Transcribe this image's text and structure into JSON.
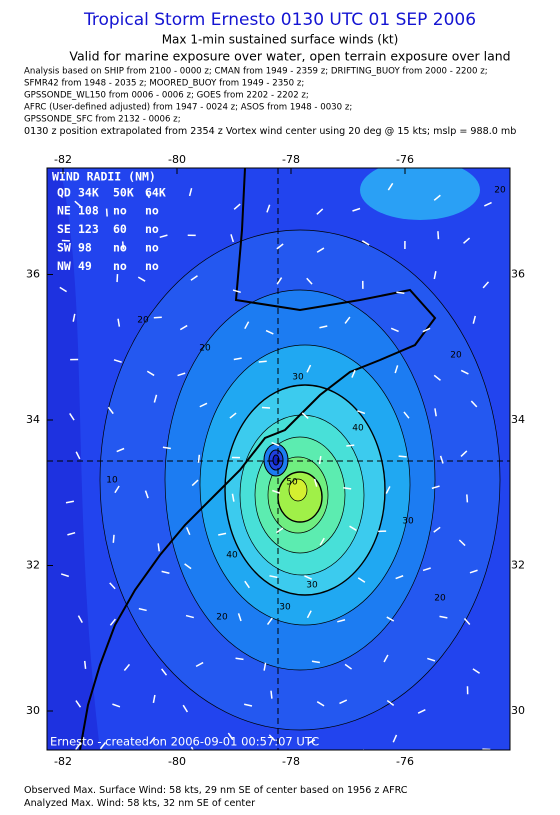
{
  "header": {
    "title": "Tropical Storm Ernesto 0130 UTC 01 SEP 2006",
    "subtitle": "Max 1-min sustained surface winds (kt)",
    "validity": "Valid for marine exposure over water, open terrain exposure over land",
    "analysis_lines": [
      "Analysis based on   SHIP from 2100 - 0000 z;  CMAN from 1949 - 2359 z;  DRIFTING_BUOY from 2000 - 2200 z;",
      "SFMR42 from 1948 - 2035 z;  MOORED_BUOY from 1949 - 2350 z;",
      "GPSSONDE_WL150 from 0006 - 0006 z;  GOES from 2202 - 2202 z;",
      "AFRC (User-defined adjusted) from 1947 - 0024 z;  ASOS from 1948 - 0030 z;",
      "GPSSONDE_SFC from 2132 - 0006 z;"
    ],
    "position_note": "0130 z position extrapolated from 2354 z Vortex wind center using 20 deg @ 15 kts; mslp = 988.0 mb"
  },
  "map": {
    "lon_ticks": [
      -82,
      -80,
      -78,
      -76
    ],
    "lat_ticks": [
      36,
      34,
      32,
      30
    ],
    "contour_labels": [
      "20",
      "20",
      "20",
      "20",
      "20",
      "30",
      "30",
      "30",
      "40",
      "40",
      "50",
      "10",
      "20",
      "30"
    ],
    "wind_radii": {
      "title": "WIND RADII (NM)",
      "header": [
        "QD",
        "34K",
        "50K",
        "64K"
      ],
      "rows": [
        [
          "NE",
          "108",
          "no",
          "no"
        ],
        [
          "SE",
          "123",
          "60",
          "no"
        ],
        [
          "SW",
          "98",
          "no",
          "no"
        ],
        [
          "NW",
          "49",
          "no",
          "no"
        ]
      ]
    },
    "credit": "Ernesto - created on 2006-09-01 00:57:07 UTC"
  },
  "footer": {
    "lines": [
      "Observed Max. Surface Wind: 58 kts, 29 nm SE of center based on 1956 z AFRC",
      "Analyzed Max. Wind: 58 kts, 32 nm SE of center"
    ]
  }
}
